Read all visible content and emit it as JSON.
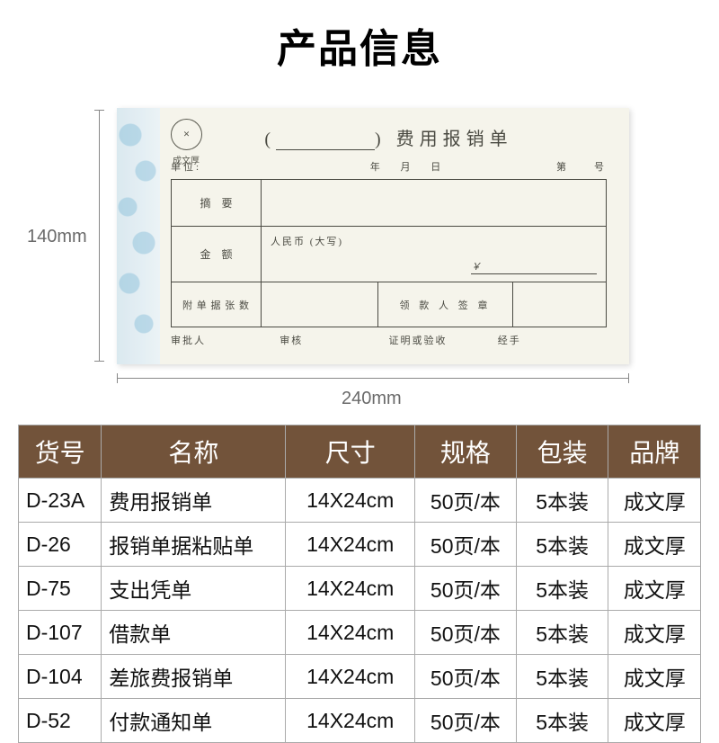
{
  "page": {
    "title": "产品信息",
    "dimensions": {
      "height": "140mm",
      "width": "240mm"
    }
  },
  "form": {
    "logo_text": "✕",
    "logo_sub": "成文厚",
    "title_prefix": "(",
    "title_suffix": ")",
    "title": "费用报销单",
    "unit_label": "单位:",
    "date_year": "年",
    "date_month": "月",
    "date_day": "日",
    "number_label": "第　　号",
    "row1_label": "摘要",
    "row2_label": "金额",
    "rmb_label": "人民币 (大写)",
    "yen_symbol": "￥",
    "row3_label": "附 单 据 张 数",
    "row3_sign": "领 款 人 签 章",
    "footer": {
      "approver": "审批人",
      "audit": "审核",
      "verify": "证明或验收",
      "handler": "经手"
    }
  },
  "table": {
    "header_bg": "#72533a",
    "header_fg": "#ffffff",
    "border_color": "#aaaaaa",
    "columns": [
      "货号",
      "名称",
      "尺寸",
      "规格",
      "包装",
      "品牌"
    ],
    "rows": [
      [
        "D-23A",
        "费用报销单",
        "14X24cm",
        "50页/本",
        "5本装",
        "成文厚"
      ],
      [
        "D-26",
        "报销单据粘贴单",
        "14X24cm",
        "50页/本",
        "5本装",
        "成文厚"
      ],
      [
        "D-75",
        "支出凭单",
        "14X24cm",
        "50页/本",
        "5本装",
        "成文厚"
      ],
      [
        "D-107",
        "借款单",
        "14X24cm",
        "50页/本",
        "5本装",
        "成文厚"
      ],
      [
        "D-104",
        "差旅费报销单",
        "14X24cm",
        "50页/本",
        "5本装",
        "成文厚"
      ],
      [
        "D-52",
        "付款通知单",
        "14X24cm",
        "50页/本",
        "5本装",
        "成文厚"
      ]
    ]
  }
}
